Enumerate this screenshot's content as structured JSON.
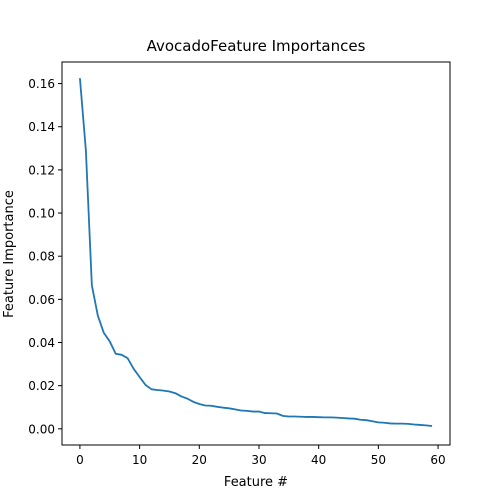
{
  "chart_data": {
    "type": "line",
    "title": "AvocadoFeature Importances",
    "xlabel": "Feature #",
    "ylabel": "Feature Importance",
    "xlim": [
      -3,
      62
    ],
    "ylim": [
      -0.0075,
      0.17
    ],
    "xticks": [
      0,
      10,
      20,
      30,
      40,
      50,
      60
    ],
    "xtick_labels": [
      "0",
      "10",
      "20",
      "30",
      "40",
      "50",
      "60"
    ],
    "yticks": [
      0.0,
      0.02,
      0.04,
      0.06,
      0.08,
      0.1,
      0.12,
      0.14,
      0.16
    ],
    "ytick_labels": [
      "0.00",
      "0.02",
      "0.04",
      "0.06",
      "0.08",
      "0.10",
      "0.12",
      "0.14",
      "0.16"
    ],
    "grid": false,
    "legend": "none",
    "series": [
      {
        "color": "#1f77b4",
        "x": [
          0,
          1,
          2,
          3,
          4,
          5,
          6,
          7,
          8,
          9,
          10,
          11,
          12,
          13,
          14,
          15,
          16,
          17,
          18,
          19,
          20,
          21,
          22,
          23,
          24,
          25,
          26,
          27,
          28,
          29,
          30,
          31,
          32,
          33,
          34,
          35,
          36,
          37,
          38,
          39,
          40,
          41,
          42,
          43,
          44,
          45,
          46,
          47,
          48,
          49,
          50,
          51,
          52,
          53,
          54,
          55,
          56,
          57,
          58,
          59
        ],
        "values": [
          0.1625,
          0.129,
          0.0665,
          0.0525,
          0.0445,
          0.0405,
          0.0348,
          0.0343,
          0.0327,
          0.0278,
          0.024,
          0.0203,
          0.0183,
          0.018,
          0.0177,
          0.0173,
          0.0165,
          0.015,
          0.014,
          0.0125,
          0.0115,
          0.0108,
          0.0107,
          0.0102,
          0.0098,
          0.0095,
          0.009,
          0.0085,
          0.0083,
          0.008,
          0.008,
          0.0073,
          0.0072,
          0.0071,
          0.006,
          0.0057,
          0.0057,
          0.0056,
          0.0055,
          0.0055,
          0.0054,
          0.0053,
          0.0053,
          0.0052,
          0.005,
          0.0048,
          0.0047,
          0.0042,
          0.004,
          0.0035,
          0.003,
          0.0028,
          0.0025,
          0.0024,
          0.0024,
          0.0023,
          0.002,
          0.0018,
          0.0016,
          0.0013
        ]
      }
    ]
  }
}
